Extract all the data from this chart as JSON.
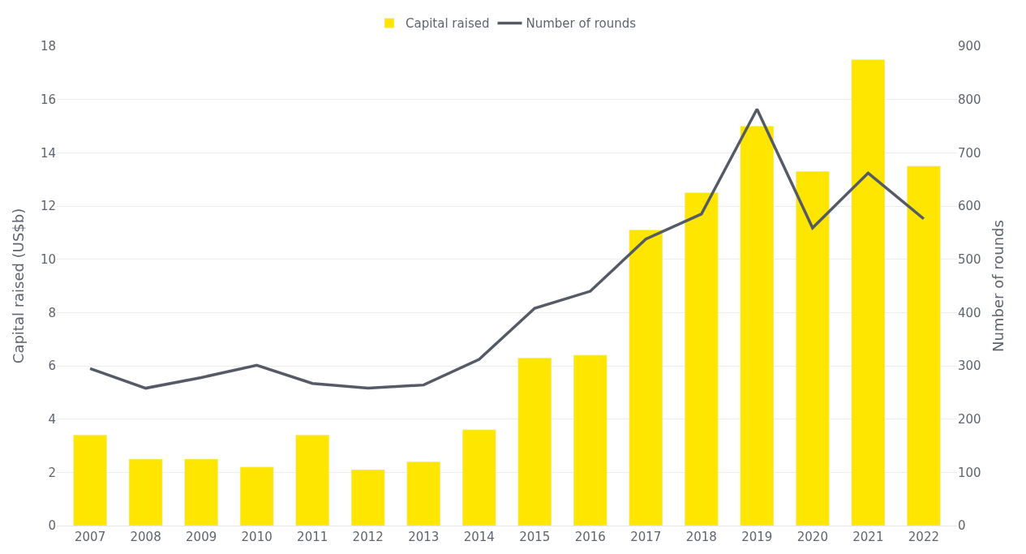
{
  "chart_data": {
    "type": "bar",
    "categories": [
      "2007",
      "2008",
      "2009",
      "2010",
      "2011",
      "2012",
      "2013",
      "2014",
      "2015",
      "2016",
      "2017",
      "2018",
      "2019",
      "2020",
      "2021",
      "2022"
    ],
    "series": [
      {
        "name": "Capital raised",
        "color": "#ffe600",
        "values": [
          3.4,
          2.5,
          2.5,
          2.2,
          3.4,
          2.1,
          2.4,
          3.6,
          6.3,
          6.4,
          11.1,
          12.5,
          15.0,
          13.3,
          17.5,
          13.5
        ]
      },
      {
        "name": "Number of rounds",
        "type": "line",
        "axis": "y2",
        "color": "#555b66",
        "values": [
          295,
          258,
          278,
          301,
          267,
          258,
          264,
          312,
          408,
          440,
          538,
          585,
          782,
          559,
          662,
          576
        ]
      }
    ],
    "ylabel": "Capital raised (US$b)",
    "y2label": "Number of rounds",
    "ylim": [
      0,
      18
    ],
    "yticks": [
      0,
      2,
      4,
      6,
      8,
      10,
      12,
      14,
      16,
      18
    ],
    "y2lim": [
      0,
      900
    ],
    "y2ticks": [
      0,
      100,
      200,
      300,
      400,
      500,
      600,
      700,
      800,
      900
    ],
    "grid": "y",
    "legend": "top",
    "marker": "none",
    "line_style": "solid"
  }
}
